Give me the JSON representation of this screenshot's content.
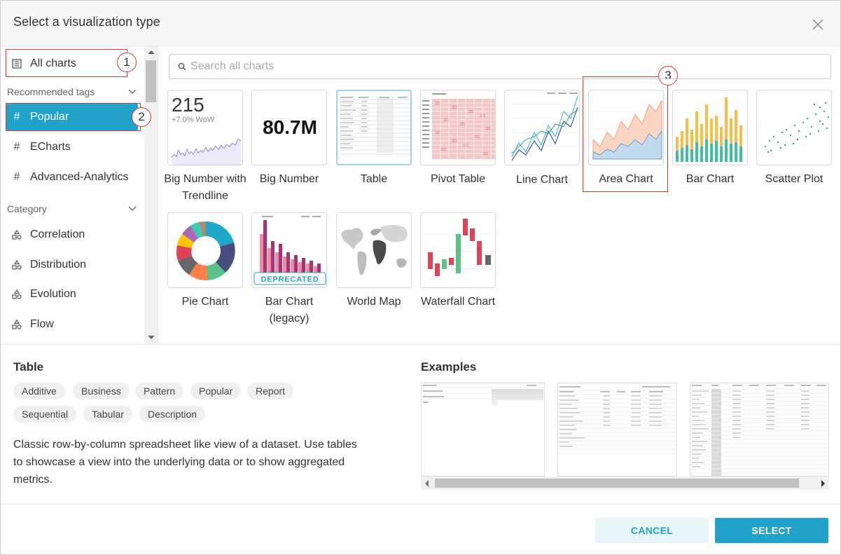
{
  "header": {
    "title": "Select a visualization type"
  },
  "sidebar": {
    "all_charts": "All charts",
    "recommended_tags_label": "Recommended tags",
    "tags": [
      "Popular",
      "ECharts",
      "Advanced-Analytics"
    ],
    "category_label": "Category",
    "categories": [
      "Correlation",
      "Distribution",
      "Evolution",
      "Flow"
    ]
  },
  "annotations": [
    "1",
    "2",
    "3"
  ],
  "search": {
    "placeholder": "Search all charts",
    "value": ""
  },
  "charts": [
    {
      "label": "Big Number with Trendline",
      "thumb_number": "215",
      "thumb_sub": "+7.0% WoW"
    },
    {
      "label": "Big Number",
      "thumb_number": "80.7M"
    },
    {
      "label": "Table"
    },
    {
      "label": "Pivot Table"
    },
    {
      "label": "Line Chart"
    },
    {
      "label": "Area Chart"
    },
    {
      "label": "Bar Chart"
    },
    {
      "label": "Scatter Plot"
    },
    {
      "label": "Pie Chart"
    },
    {
      "label": "Bar Chart (legacy)",
      "badge": "DEPRECATED"
    },
    {
      "label": "World Map"
    },
    {
      "label": "Waterfall Chart"
    }
  ],
  "details": {
    "title": "Table",
    "tags": [
      "Additive",
      "Business",
      "Pattern",
      "Popular",
      "Report",
      "Sequential",
      "Tabular",
      "Description"
    ],
    "description": "Classic row-by-column spreadsheet like view of a dataset. Use tables to showcase a view into the underlying data or to show aggregated metrics.",
    "examples_label": "Examples"
  },
  "footer": {
    "cancel": "CANCEL",
    "select": "SELECT"
  },
  "colors": {
    "accent": "#21a2c9",
    "annotation": "#dd3333"
  }
}
